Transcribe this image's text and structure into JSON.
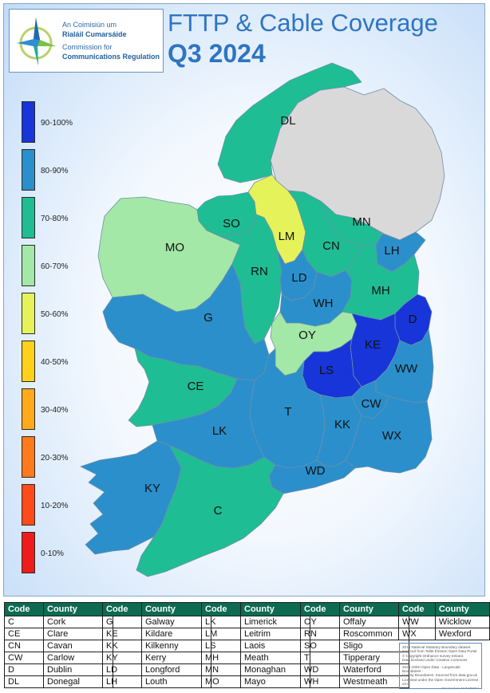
{
  "header": {
    "title_line1": "FTTP & Cable Coverage",
    "title_line2": "Q3 2024"
  },
  "logo": {
    "line1": "An Coimisiún um",
    "line2": "Rialáil Cumarsáide",
    "line3": "Commission for",
    "line4": "Communications Regulation",
    "icon": "comreg-star-logo"
  },
  "legend": {
    "items": [
      {
        "label": "90-100%",
        "color": "#1735d9"
      },
      {
        "label": "80-90%",
        "color": "#2b8fcc"
      },
      {
        "label": "70-80%",
        "color": "#1fbd94"
      },
      {
        "label": "60-70%",
        "color": "#a3e8a6"
      },
      {
        "label": "50-60%",
        "color": "#e5f25a"
      },
      {
        "label": "40-50%",
        "color": "#ffd11a"
      },
      {
        "label": "30-40%",
        "color": "#ffaa1a"
      },
      {
        "label": "20-30%",
        "color": "#ff7a1a"
      },
      {
        "label": "10-20%",
        "color": "#ff4a1a"
      },
      {
        "label": "0-10%",
        "color": "#ee1c1c"
      }
    ]
  },
  "map": {
    "northern_ireland_color": "#d9d9d9",
    "counties": [
      {
        "code": "DL",
        "band": "70-80%"
      },
      {
        "code": "SO",
        "band": "70-80%"
      },
      {
        "code": "LM",
        "band": "50-60%"
      },
      {
        "code": "MN",
        "band": "70-80%"
      },
      {
        "code": "CN",
        "band": "70-80%"
      },
      {
        "code": "LH",
        "band": "80-90%"
      },
      {
        "code": "MO",
        "band": "60-70%"
      },
      {
        "code": "RN",
        "band": "70-80%"
      },
      {
        "code": "LD",
        "band": "80-90%"
      },
      {
        "code": "WH",
        "band": "80-90%"
      },
      {
        "code": "MH",
        "band": "70-80%"
      },
      {
        "code": "D",
        "band": "90-100%"
      },
      {
        "code": "G",
        "band": "80-90%"
      },
      {
        "code": "OY",
        "band": "60-70%"
      },
      {
        "code": "KE",
        "band": "90-100%"
      },
      {
        "code": "LS",
        "band": "90-100%"
      },
      {
        "code": "WW",
        "band": "80-90%"
      },
      {
        "code": "CE",
        "band": "70-80%"
      },
      {
        "code": "T",
        "band": "80-90%"
      },
      {
        "code": "CW",
        "band": "80-90%"
      },
      {
        "code": "KK",
        "band": "80-90%"
      },
      {
        "code": "LK",
        "band": "80-90%"
      },
      {
        "code": "WX",
        "band": "80-90%"
      },
      {
        "code": "WD",
        "band": "80-90%"
      },
      {
        "code": "KY",
        "band": "80-90%"
      },
      {
        "code": "C",
        "band": "70-80%"
      }
    ]
  },
  "tables": {
    "header_code": "Code",
    "header_county": "County",
    "groups": [
      [
        [
          "C",
          "Cork"
        ],
        [
          "CE",
          "Clare"
        ],
        [
          "CN",
          "Cavan"
        ],
        [
          "CW",
          "Carlow"
        ],
        [
          "D",
          "Dublin"
        ],
        [
          "DL",
          "Donegal"
        ]
      ],
      [
        [
          "G",
          "Galway"
        ],
        [
          "KE",
          "Kildare"
        ],
        [
          "KK",
          "Kilkenny"
        ],
        [
          "KY",
          "Kerry"
        ],
        [
          "LD",
          "Longford"
        ],
        [
          "LH",
          "Louth"
        ]
      ],
      [
        [
          "LK",
          "Limerick"
        ],
        [
          "LM",
          "Leitrim"
        ],
        [
          "LS",
          "Laois"
        ],
        [
          "MH",
          "Meath"
        ],
        [
          "MN",
          "Monaghan"
        ],
        [
          "MO",
          "Mayo"
        ]
      ],
      [
        [
          "OY",
          "Offaly"
        ],
        [
          "RN",
          "Roscommon"
        ],
        [
          "SO",
          "Sligo"
        ],
        [
          "T",
          "Tipperary"
        ],
        [
          "WD",
          "Waterford"
        ],
        [
          "WH",
          "Westmeath"
        ]
      ],
      [
        [
          "WW",
          "Wicklow"
        ],
        [
          "WX",
          "Wexford"
        ]
      ]
    ]
  },
  "credits": {
    "lines": [
      "2019 National Statutory Boundary dataset",
      "Sourced from Tailte Éireann Open Data Portal",
      "© Copyright Ordnance survey Ireland.",
      "Data licensed under Creative Commons",
      "2023 OSNI Open Data - Largescale Boundaries -",
      "County Boundaries. Sourced from data.gov.uk",
      "Licensed under the Open Government License",
      "v3.0",
      "Created on 11/12/2024"
    ]
  }
}
